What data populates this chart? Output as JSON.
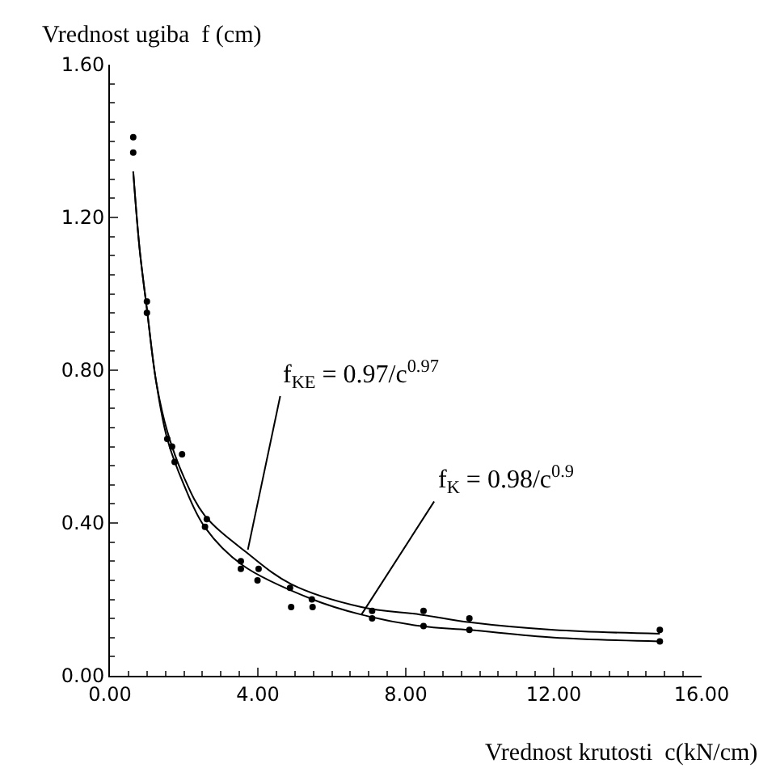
{
  "chart_data": {
    "type": "scatter",
    "xlabel": "Vrednost krutosti  c(kN/cm)",
    "ylabel": "Vrednost ugiba  f (cm)",
    "xlim": [
      0,
      16
    ],
    "ylim": [
      0,
      1.6
    ],
    "xticks": [
      {
        "value": 0,
        "label": "0.00"
      },
      {
        "value": 4,
        "label": "4.00"
      },
      {
        "value": 8,
        "label": "8.00"
      },
      {
        "value": 12,
        "label": "12.00"
      },
      {
        "value": 16,
        "label": "16.00"
      }
    ],
    "yticks": [
      {
        "value": 0,
        "label": "0.00"
      },
      {
        "value": 0.4,
        "label": "0.40"
      },
      {
        "value": 0.8,
        "label": "0.80"
      },
      {
        "value": 1.2,
        "label": "1.20"
      },
      {
        "value": 1.6,
        "label": "1.60"
      }
    ],
    "grid": false,
    "series": [
      {
        "marker": "circle",
        "color": "#000000",
        "x": [
          0.63,
          1.0,
          1.68,
          1.95,
          2.62,
          3.54,
          4.02,
          4.87,
          5.46,
          7.09,
          8.48,
          9.72,
          14.87
        ],
        "values": [
          1.41,
          0.98,
          0.6,
          0.58,
          0.41,
          0.3,
          0.28,
          0.23,
          0.2,
          0.17,
          0.17,
          0.12,
          0.12
        ]
      },
      {
        "marker": "circle",
        "color": "#000000",
        "x": [
          0.63,
          1.0,
          1.55,
          1.75,
          2.57,
          3.54,
          3.99,
          4.9,
          5.48,
          7.09,
          8.48,
          9.72,
          14.87
        ],
        "values": [
          1.37,
          0.95,
          0.62,
          0.56,
          0.39,
          0.28,
          0.25,
          0.18,
          0.18,
          0.15,
          0.13,
          0.15,
          0.09
        ]
      },
      {
        "type": "line",
        "color": "#000000",
        "x": [
          0.63,
          0.8,
          1.0,
          1.25,
          1.55,
          2.0,
          2.56,
          3.73,
          4.9,
          6.8,
          8.41,
          9.72,
          12,
          14.87
        ],
        "values": [
          1.32,
          1.12,
          0.96,
          0.77,
          0.64,
          0.52,
          0.42,
          0.32,
          0.24,
          0.18,
          0.16,
          0.14,
          0.12,
          0.11
        ]
      },
      {
        "type": "line",
        "color": "#000000",
        "x": [
          0.63,
          0.8,
          1.0,
          1.25,
          1.55,
          2.0,
          2.56,
          3.58,
          5.48,
          6.8,
          8.41,
          9.72,
          12,
          14.87
        ],
        "values": [
          1.32,
          1.12,
          0.96,
          0.77,
          0.62,
          0.5,
          0.39,
          0.29,
          0.2,
          0.16,
          0.13,
          0.12,
          0.1,
          0.09
        ]
      }
    ],
    "annotations": [
      {
        "text": "f$_{KE}$ = 0.97/c$^{0.97}$",
        "x": 3.73,
        "y": 0.33
      },
      {
        "text": "f$_{K}$ = 0.98/c$^{0.9}$",
        "x": 6.8,
        "y": 0.16
      }
    ]
  }
}
